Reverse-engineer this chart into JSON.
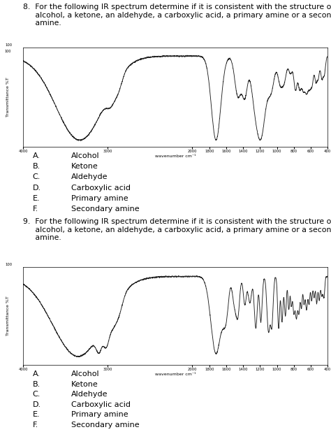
{
  "choices": [
    [
      "A.",
      "Alcohol"
    ],
    [
      "B.",
      "Ketone"
    ],
    [
      "C.",
      "Aldehyde"
    ],
    [
      "D.",
      "Carboxylic acid"
    ],
    [
      "E.",
      "Primary amine"
    ],
    [
      "F.",
      "Secondary amine"
    ]
  ],
  "xlabel": "wavenumber cm-1",
  "ylabel": "Transmittance %T",
  "xmin": 4000,
  "xmax": 400,
  "ymin": 0,
  "ymax": 100,
  "background": "#ffffff",
  "spectrum_color": "#222222",
  "plot_bg": "#ffffff",
  "q8_label": "8.",
  "q9_label": "9.",
  "q_text": "For the following IR spectrum determine if it is consistent with the structure of an alcohol, a ketone, an aldehyde, a carboxylic acid, a primary amine or a secondary amine."
}
